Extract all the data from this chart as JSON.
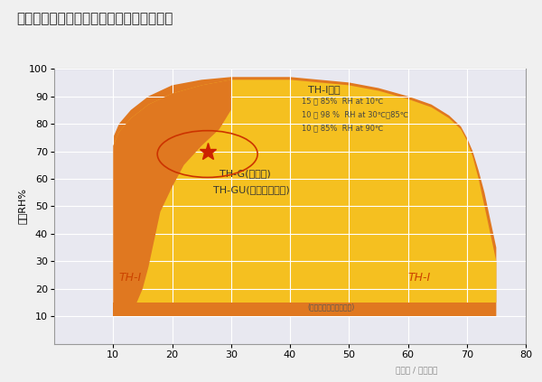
{
  "title": "中可梯式调节范围与普通型控制范围相同。",
  "ylabel_label": "湿度RH%",
  "xlim": [
    0,
    80
  ],
  "ylim": [
    0,
    100
  ],
  "xticks": [
    10,
    20,
    30,
    40,
    50,
    60,
    70,
    80
  ],
  "yticks": [
    10,
    20,
    30,
    40,
    50,
    60,
    70,
    80,
    90,
    100
  ],
  "bg_color": "#e8e8f0",
  "grid_color": "#ffffff",
  "orange_color": "#E07820",
  "yellow_color": "#F5C020",
  "title_fontsize": 11,
  "label_fontsize": 8,
  "thi_range_title": "TH-I范围",
  "thi_range_lines": [
    "15 ～ 85%  RH at 10℃",
    "10 ～ 98 %  RH at 30℃～85℃",
    "10 ～ 85%  RH at 90℃"
  ],
  "label_thg": "TH-G(普通型)",
  "label_thgu": "TH-GU(普通超低温型)",
  "label_thi_left": "TH-I",
  "label_thi_right": "TH-I",
  "label_thi_sub": "(广范围控制温度湿度型)",
  "thi_outer_poly": [
    [
      10,
      10
    ],
    [
      10,
      75
    ],
    [
      11,
      80
    ],
    [
      13,
      85
    ],
    [
      16,
      90
    ],
    [
      20,
      94
    ],
    [
      25,
      96
    ],
    [
      30,
      97
    ],
    [
      35,
      97
    ],
    [
      40,
      97
    ],
    [
      45,
      96
    ],
    [
      50,
      95
    ],
    [
      55,
      93
    ],
    [
      60,
      90
    ],
    [
      64,
      87
    ],
    [
      67,
      83
    ],
    [
      69,
      79
    ],
    [
      70,
      75
    ],
    [
      71,
      70
    ],
    [
      72,
      63
    ],
    [
      73,
      55
    ],
    [
      74,
      45
    ],
    [
      75,
      35
    ],
    [
      75,
      10
    ],
    [
      10,
      10
    ]
  ],
  "yellow_poly": [
    [
      10,
      15
    ],
    [
      10,
      72
    ],
    [
      11,
      77
    ],
    [
      13,
      82
    ],
    [
      16,
      87
    ],
    [
      20,
      91
    ],
    [
      25,
      94
    ],
    [
      30,
      96
    ],
    [
      35,
      96
    ],
    [
      40,
      96
    ],
    [
      45,
      95
    ],
    [
      50,
      94
    ],
    [
      55,
      92
    ],
    [
      60,
      89
    ],
    [
      64,
      86
    ],
    [
      67,
      82
    ],
    [
      69,
      78
    ],
    [
      70,
      74
    ],
    [
      71,
      68
    ],
    [
      72,
      60
    ],
    [
      73,
      50
    ],
    [
      74,
      40
    ],
    [
      75,
      30
    ],
    [
      75,
      15
    ],
    [
      10,
      15
    ]
  ],
  "orange_left_poly": [
    [
      10,
      15
    ],
    [
      10,
      72
    ],
    [
      11,
      77
    ],
    [
      13,
      82
    ],
    [
      16,
      87
    ],
    [
      20,
      91
    ],
    [
      25,
      94
    ],
    [
      30,
      96
    ],
    [
      30,
      85
    ],
    [
      28,
      78
    ],
    [
      25,
      72
    ],
    [
      22,
      65
    ],
    [
      20,
      57
    ],
    [
      18,
      48
    ],
    [
      17,
      38
    ],
    [
      16,
      28
    ],
    [
      15,
      20
    ],
    [
      14,
      15
    ],
    [
      10,
      15
    ]
  ],
  "orange_bottom_poly": [
    [
      10,
      10
    ],
    [
      10,
      15
    ],
    [
      75,
      15
    ],
    [
      75,
      10
    ],
    [
      10,
      10
    ]
  ]
}
